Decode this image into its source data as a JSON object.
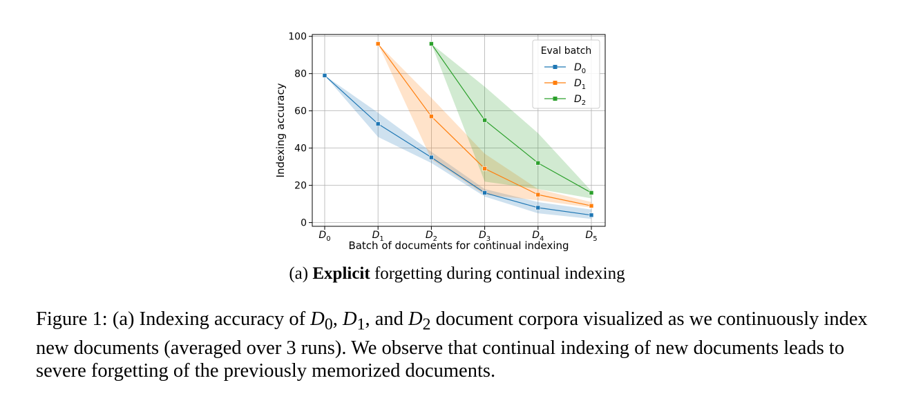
{
  "chart_data": {
    "type": "line",
    "categories": [
      "D0",
      "D1",
      "D2",
      "D3",
      "D4",
      "D5"
    ],
    "category_labels": [
      {
        "base": "D",
        "sub": "0"
      },
      {
        "base": "D",
        "sub": "1"
      },
      {
        "base": "D",
        "sub": "2"
      },
      {
        "base": "D",
        "sub": "3"
      },
      {
        "base": "D",
        "sub": "4"
      },
      {
        "base": "D",
        "sub": "5"
      }
    ],
    "xlabel": "Batch of documents for continual indexing",
    "ylabel": "Indexing accuracy",
    "ylim": [
      -2,
      101
    ],
    "yticks": [
      0,
      20,
      40,
      60,
      80,
      100
    ],
    "grid": true,
    "legend": {
      "title": "Eval batch",
      "placement": "top-right"
    },
    "series": [
      {
        "name": "D0",
        "label_base": "D",
        "label_sub": "0",
        "color": "#1f77b4",
        "x": [
          "D0",
          "D1",
          "D2",
          "D3",
          "D4",
          "D5"
        ],
        "values": [
          79,
          53,
          35,
          16,
          8,
          4
        ],
        "lower": [
          79,
          46,
          32,
          14,
          5,
          2
        ],
        "upper": [
          79,
          59,
          38,
          18,
          11,
          7
        ]
      },
      {
        "name": "D1",
        "label_base": "D",
        "label_sub": "1",
        "color": "#ff7f0e",
        "x": [
          "D1",
          "D2",
          "D3",
          "D4",
          "D5"
        ],
        "values": [
          96,
          57,
          29,
          15,
          9
        ],
        "lower": [
          96,
          34,
          15,
          12,
          8
        ],
        "upper": [
          96,
          67,
          37,
          18,
          11
        ]
      },
      {
        "name": "D2",
        "label_base": "D",
        "label_sub": "2",
        "color": "#2ca02c",
        "x": [
          "D2",
          "D3",
          "D4",
          "D5"
        ],
        "values": [
          96,
          55,
          32,
          16
        ],
        "lower": [
          96,
          22,
          18,
          13
        ],
        "upper": [
          96,
          73,
          48,
          17
        ]
      }
    ]
  },
  "subcaption": {
    "prefix": "(a) ",
    "bold": "Explicit",
    "rest": " forgetting during continual indexing"
  },
  "caption": {
    "part1": "Figure 1: (a) Indexing accuracy of ",
    "d0_base": "D",
    "d0_sub": "0",
    "sep1": ", ",
    "d1_base": "D",
    "d1_sub": "1",
    "sep2": ", and ",
    "d2_base": "D",
    "d2_sub": "2",
    "part2": " document corpora visualized as we continuously index new documents (averaged over 3 runs). We observe that continual indexing of new documents leads to severe forgetting of the previously memorized documents."
  }
}
